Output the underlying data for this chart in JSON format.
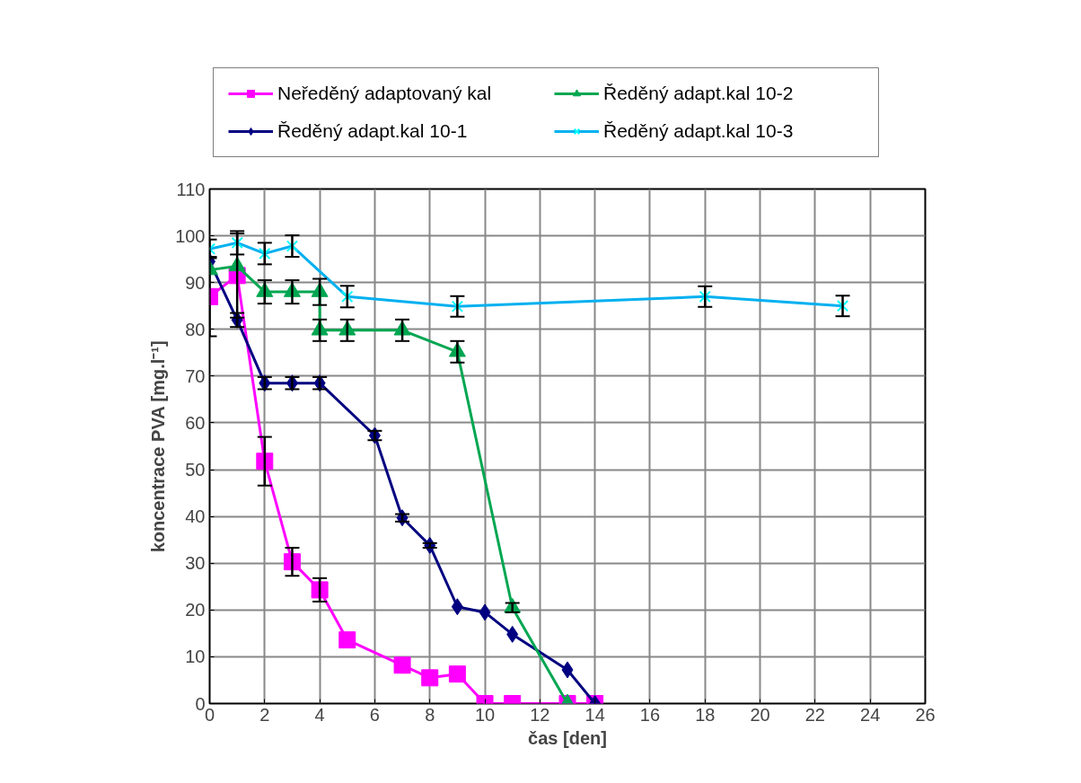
{
  "chart_data": {
    "type": "line",
    "xlabel": "čas [den]",
    "ylabel": "koncentrace PVA [mg.l⁻¹]",
    "xlim": [
      0,
      26
    ],
    "xticks": [
      0,
      2,
      4,
      6,
      8,
      10,
      12,
      14,
      16,
      18,
      20,
      22,
      24,
      26
    ],
    "ylim": [
      0,
      110
    ],
    "yticks": [
      0,
      10,
      20,
      30,
      40,
      50,
      60,
      70,
      80,
      90,
      100,
      110
    ],
    "grid": true,
    "legend": "top",
    "line_style": "solid",
    "series": [
      {
        "name": "Neředěný adaptovaný kal",
        "color": "#ff00ff",
        "marker": "square",
        "x": [
          0,
          1,
          2,
          3,
          4,
          5,
          7,
          8,
          9,
          10,
          11,
          13,
          14
        ],
        "values": [
          87,
          91.5,
          51.8,
          30.3,
          24.3,
          13.6,
          8.2,
          5.5,
          6.3,
          0,
          0,
          0,
          0
        ],
        "errors": [
          8.5,
          9,
          5.2,
          3,
          2.5,
          null,
          null,
          null,
          null,
          null,
          null,
          null,
          null
        ]
      },
      {
        "name": "Ředěný adapt.kal 10-1",
        "color": "#000080",
        "marker": "diamond",
        "x": [
          0,
          1,
          2,
          3,
          4,
          6,
          7,
          8,
          9,
          10,
          11,
          13,
          14
        ],
        "values": [
          94.5,
          82,
          68.5,
          68.5,
          68.5,
          57.3,
          39.7,
          33.8,
          20.7,
          19.5,
          14.8,
          7.2,
          0
        ],
        "errors": [
          null,
          1.5,
          1.3,
          1.3,
          1.3,
          1,
          0.8,
          0.5,
          null,
          null,
          null,
          null,
          null
        ]
      },
      {
        "name": "Ředěný adapt.kal 10-2",
        "color": "#00a651",
        "marker": "triangle",
        "x": [
          0,
          1,
          2,
          3,
          4,
          4,
          5,
          7,
          9,
          11,
          13
        ],
        "values": [
          92.7,
          93.5,
          88,
          88,
          88,
          79.8,
          79.8,
          79.8,
          75.2,
          20.5,
          0
        ],
        "errors": [
          null,
          null,
          2.5,
          2.5,
          2.8,
          2.3,
          2.3,
          2.3,
          2.3,
          1,
          null
        ]
      },
      {
        "name": "Ředěný adapt.kal 10-3",
        "color": "#00b0f0",
        "marker": "cross",
        "x": [
          0,
          1,
          2,
          3,
          5,
          9,
          18,
          23
        ],
        "values": [
          97.2,
          98.5,
          96.2,
          97.8,
          87,
          84.9,
          87,
          85
        ],
        "errors": [
          2,
          2.5,
          2.3,
          2.3,
          2.3,
          2.2,
          2.2,
          2.2
        ]
      }
    ]
  }
}
